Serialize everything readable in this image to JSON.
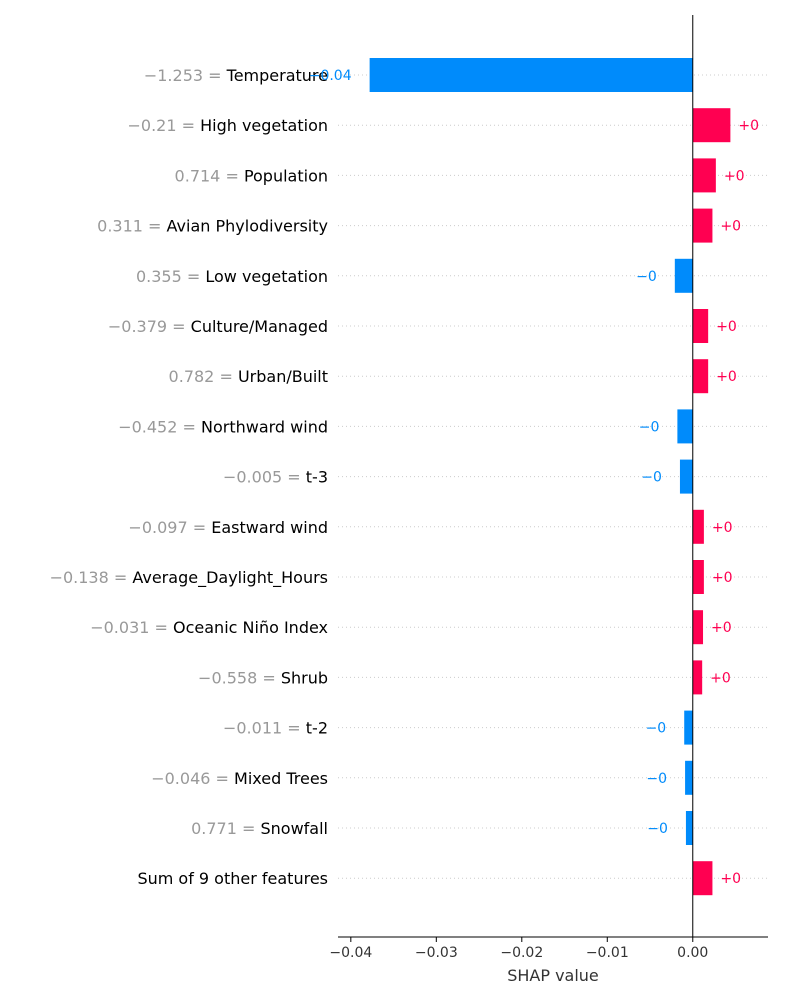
{
  "colors": {
    "positive": "#ff0051",
    "negative": "#008bfb",
    "axis": "#000000",
    "grid": "#cccccc",
    "feature_value": "#999999",
    "feature_name": "#000000"
  },
  "chart_data": {
    "type": "bar",
    "orientation": "horizontal",
    "title": "",
    "xlabel": "SHAP value",
    "ylabel": "",
    "xlim": [
      -0.0415,
      0.0088
    ],
    "xticks": [
      -0.04,
      -0.03,
      -0.02,
      -0.01,
      0.0
    ],
    "xtick_labels": [
      "−0.04",
      "−0.03",
      "−0.02",
      "−0.01",
      "0.00"
    ],
    "grid": "dotted horizontal row lines",
    "legend": "none",
    "rows": [
      {
        "value_text": "−1.253 = ",
        "name": "Temperature",
        "shap": -0.0378,
        "label": "−0.04"
      },
      {
        "value_text": "−0.21 = ",
        "name": "High vegetation",
        "shap": 0.0044,
        "label": "+0"
      },
      {
        "value_text": "0.714 = ",
        "name": "Population",
        "shap": 0.0027,
        "label": "+0"
      },
      {
        "value_text": "0.311 = ",
        "name": "Avian Phylodiversity",
        "shap": 0.0023,
        "label": "+0"
      },
      {
        "value_text": "0.355 = ",
        "name": "Low vegetation",
        "shap": -0.0021,
        "label": "−0"
      },
      {
        "value_text": "−0.379 = ",
        "name": "Culture/Managed",
        "shap": 0.0018,
        "label": "+0"
      },
      {
        "value_text": "0.782 = ",
        "name": "Urban/Built",
        "shap": 0.0018,
        "label": "+0"
      },
      {
        "value_text": "−0.452 = ",
        "name": "Northward wind",
        "shap": -0.0018,
        "label": "−0"
      },
      {
        "value_text": "−0.005 = ",
        "name": "t-3",
        "shap": -0.0015,
        "label": "−0"
      },
      {
        "value_text": "−0.097 = ",
        "name": "Eastward wind",
        "shap": 0.0013,
        "label": "+0"
      },
      {
        "value_text": "−0.138 = ",
        "name": "Average_Daylight_Hours",
        "shap": 0.0013,
        "label": "+0"
      },
      {
        "value_text": "−0.031 = ",
        "name": "Oceanic Niño Index",
        "shap": 0.0012,
        "label": "+0"
      },
      {
        "value_text": "−0.558 = ",
        "name": "Shrub",
        "shap": 0.0011,
        "label": "+0"
      },
      {
        "value_text": "−0.011 = ",
        "name": "t-2",
        "shap": -0.001,
        "label": "−0"
      },
      {
        "value_text": "−0.046 = ",
        "name": "Mixed Trees",
        "shap": -0.0009,
        "label": "−0"
      },
      {
        "value_text": "0.771 = ",
        "name": "Snowfall",
        "shap": -0.0008,
        "label": "−0"
      },
      {
        "value_text": "",
        "name": "Sum of 9 other features",
        "shap": 0.0023,
        "label": "+0"
      }
    ]
  }
}
